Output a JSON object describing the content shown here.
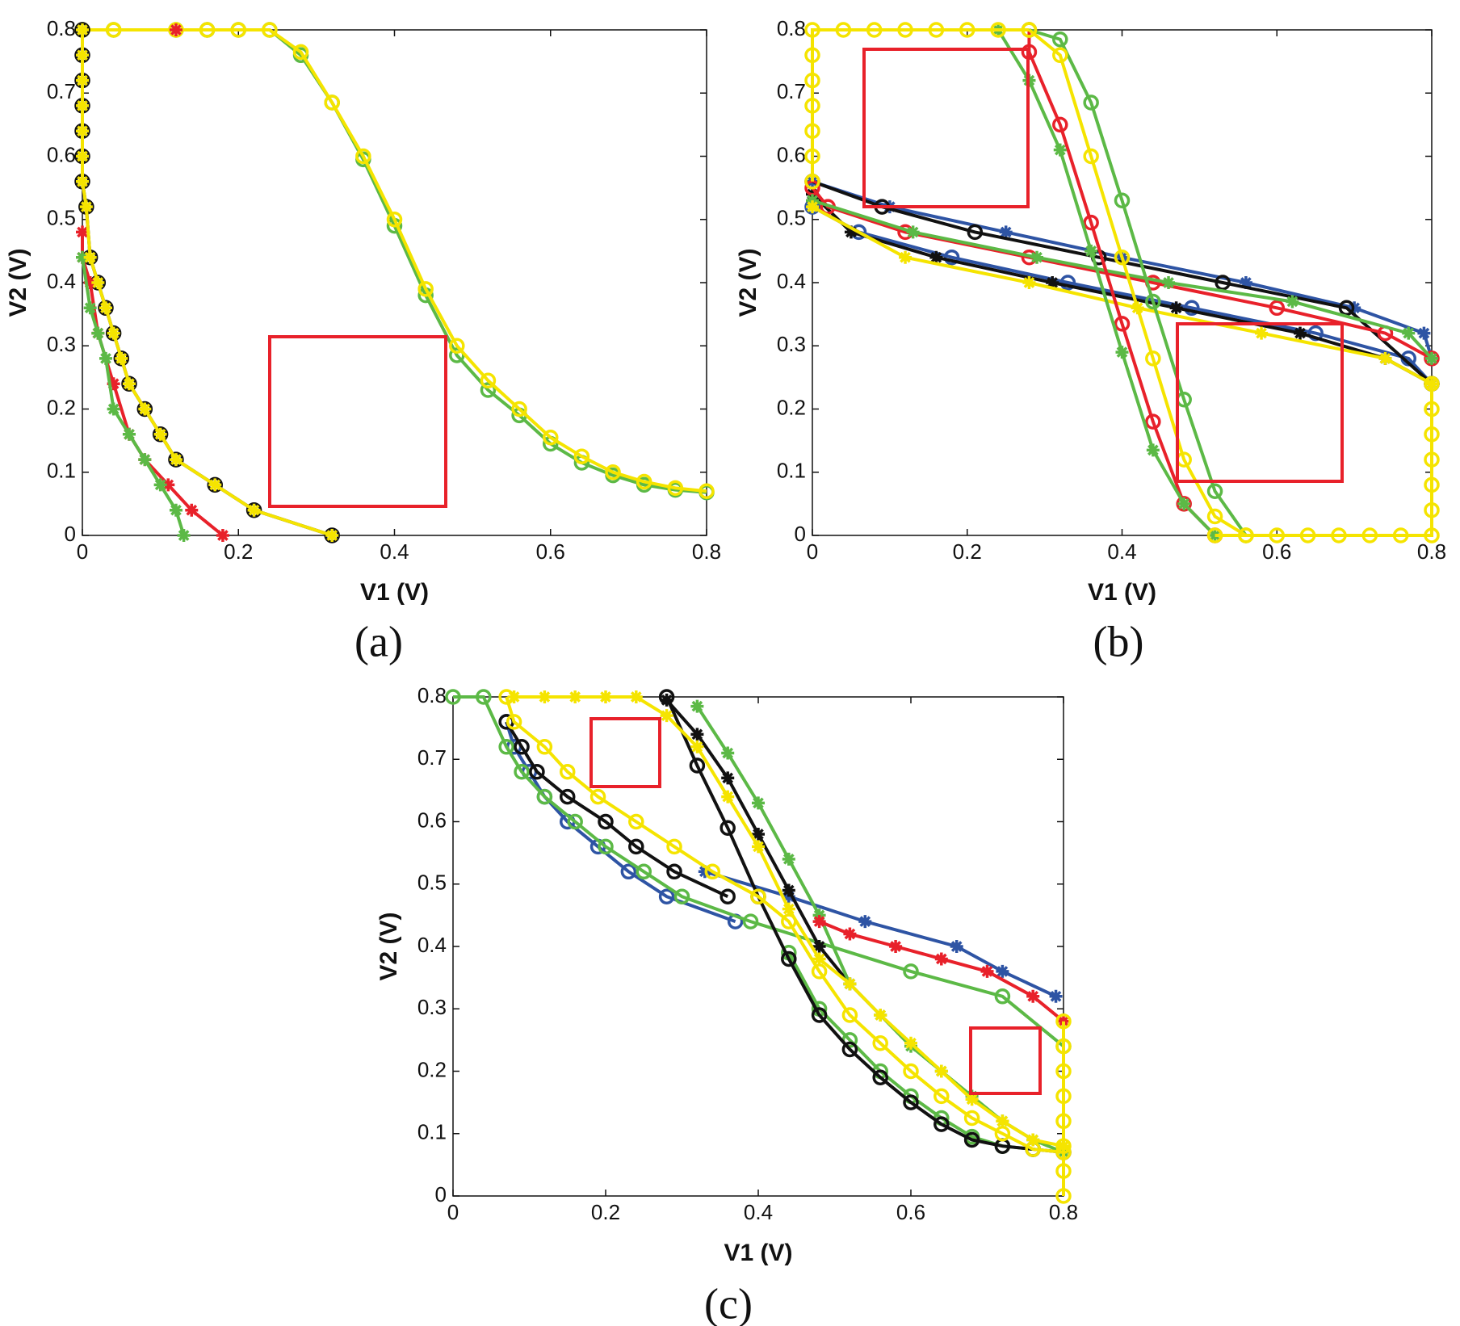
{
  "chart_data": [
    {
      "type": "line",
      "caption": "(a)",
      "xlabel": "V1 (V)",
      "ylabel": "V2 (V)",
      "xlim": [
        0,
        0.8
      ],
      "ylim": [
        0,
        0.8
      ],
      "xticks": [
        0,
        0.2,
        0.4,
        0.6,
        0.8
      ],
      "yticks": [
        0,
        0.1,
        0.2,
        0.3,
        0.4,
        0.5,
        0.6,
        0.7,
        0.8
      ],
      "series": [
        {
          "color": "#5cb946",
          "marker": "o",
          "x": [
            0,
            0.04,
            0.12,
            0.16,
            0.2,
            0.24,
            0.28,
            0.32,
            0.36,
            0.4,
            0.44,
            0.48,
            0.52,
            0.56,
            0.6,
            0.64,
            0.68,
            0.72,
            0.76,
            0.8
          ],
          "values": [
            0.8,
            0.8,
            0.8,
            0.8,
            0.8,
            0.8,
            0.76,
            0.685,
            0.595,
            0.49,
            0.38,
            0.285,
            0.23,
            0.19,
            0.145,
            0.115,
            0.095,
            0.08,
            0.072,
            0.068
          ]
        },
        {
          "color": "#f5e400",
          "marker": "o",
          "x": [
            0,
            0.04,
            0.12,
            0.16,
            0.2,
            0.24,
            0.28,
            0.32,
            0.36,
            0.4,
            0.44,
            0.48,
            0.52,
            0.56,
            0.6,
            0.64,
            0.68,
            0.72,
            0.76,
            0.8
          ],
          "values": [
            0.8,
            0.8,
            0.8,
            0.8,
            0.8,
            0.8,
            0.765,
            0.685,
            0.6,
            0.5,
            0.39,
            0.3,
            0.245,
            0.2,
            0.155,
            0.125,
            0.1,
            0.085,
            0.075,
            0.07
          ]
        },
        {
          "color": "#e8212a",
          "marker": "*",
          "x": [
            0.12
          ],
          "values": [
            0.8
          ]
        },
        {
          "color": "#111111",
          "marker": "o",
          "x": [
            0,
            0,
            0,
            0,
            0,
            0,
            0,
            0.005,
            0.01,
            0.02,
            0.03,
            0.04,
            0.05,
            0.06,
            0.08,
            0.1,
            0.12,
            0.17,
            0.22,
            0.32
          ],
          "values": [
            0.8,
            0.76,
            0.72,
            0.68,
            0.64,
            0.6,
            0.56,
            0.52,
            0.44,
            0.4,
            0.36,
            0.32,
            0.28,
            0.24,
            0.2,
            0.16,
            0.12,
            0.08,
            0.04,
            0
          ]
        },
        {
          "color": "#e8212a",
          "marker": "*",
          "x": [
            0,
            0,
            0.01,
            0.02,
            0.04,
            0.06,
            0.08,
            0.11,
            0.14,
            0.18
          ],
          "values": [
            0.48,
            0.44,
            0.4,
            0.32,
            0.24,
            0.16,
            0.12,
            0.08,
            0.04,
            0
          ]
        },
        {
          "color": "#5cb946",
          "marker": "*",
          "x": [
            0,
            0.01,
            0.02,
            0.03,
            0.04,
            0.06,
            0.08,
            0.1,
            0.12,
            0.13
          ],
          "values": [
            0.44,
            0.36,
            0.32,
            0.28,
            0.2,
            0.16,
            0.12,
            0.08,
            0.04,
            0
          ]
        },
        {
          "color": "#f5e400",
          "marker": "*",
          "x": [
            0,
            0,
            0,
            0,
            0,
            0,
            0,
            0.005,
            0.01,
            0.02,
            0.03,
            0.04,
            0.05,
            0.06,
            0.08,
            0.1,
            0.12,
            0.17,
            0.22,
            0.32
          ],
          "values": [
            0.8,
            0.76,
            0.72,
            0.68,
            0.64,
            0.6,
            0.56,
            0.52,
            0.44,
            0.4,
            0.36,
            0.32,
            0.28,
            0.24,
            0.2,
            0.16,
            0.12,
            0.08,
            0.04,
            0
          ]
        }
      ]
    },
    {
      "type": "line",
      "caption": "(b)",
      "xlabel": "V1 (V)",
      "ylabel": "V2 (V)",
      "xlim": [
        0,
        0.8
      ],
      "ylim": [
        0,
        0.8
      ],
      "xticks": [
        0,
        0.2,
        0.4,
        0.6,
        0.8
      ],
      "yticks": [
        0,
        0.1,
        0.2,
        0.3,
        0.4,
        0.5,
        0.6,
        0.7,
        0.8
      ],
      "series": [
        {
          "color": "#2e54a4",
          "marker": "o",
          "x": [
            0,
            0.06,
            0.18,
            0.33,
            0.49,
            0.65,
            0.77,
            0.8
          ],
          "values": [
            0.52,
            0.48,
            0.44,
            0.4,
            0.36,
            0.32,
            0.28,
            0.24
          ]
        },
        {
          "color": "#2e54a4",
          "marker": "*",
          "x": [
            0,
            0.1,
            0.25,
            0.4,
            0.56,
            0.7,
            0.79,
            0.8
          ],
          "values": [
            0.56,
            0.52,
            0.48,
            0.44,
            0.4,
            0.36,
            0.32,
            0.28
          ]
        },
        {
          "color": "#111111",
          "marker": "o",
          "x": [
            0,
            0.09,
            0.21,
            0.37,
            0.53,
            0.69,
            0.8
          ],
          "values": [
            0.56,
            0.52,
            0.48,
            0.44,
            0.4,
            0.36,
            0.24
          ]
        },
        {
          "color": "#111111",
          "marker": "*",
          "x": [
            0,
            0.05,
            0.16,
            0.31,
            0.47,
            0.63,
            0.74,
            0.8
          ],
          "values": [
            0.54,
            0.48,
            0.44,
            0.4,
            0.36,
            0.32,
            0.28,
            0.24
          ]
        },
        {
          "color": "#e8212a",
          "marker": "o",
          "x": [
            0,
            0.02,
            0.12,
            0.28,
            0.44,
            0.6,
            0.74,
            0.8
          ],
          "values": [
            0.55,
            0.52,
            0.48,
            0.44,
            0.4,
            0.36,
            0.32,
            0.28
          ]
        },
        {
          "color": "#5cb946",
          "marker": "*",
          "x": [
            0,
            0.13,
            0.29,
            0.46,
            0.62,
            0.77,
            0.8
          ],
          "values": [
            0.53,
            0.48,
            0.44,
            0.4,
            0.37,
            0.32,
            0.28
          ]
        },
        {
          "color": "#f5e400",
          "marker": "*",
          "x": [
            0,
            0.12,
            0.28,
            0.42,
            0.58,
            0.74,
            0.8
          ],
          "values": [
            0.52,
            0.44,
            0.4,
            0.36,
            0.32,
            0.28,
            0.24
          ]
        },
        {
          "color": "#e8212a",
          "marker": "o",
          "x": [
            0.28,
            0.28,
            0.32,
            0.36,
            0.4,
            0.44,
            0.48,
            0.52
          ],
          "values": [
            0.8,
            0.765,
            0.65,
            0.495,
            0.335,
            0.18,
            0.05,
            0
          ]
        },
        {
          "color": "#5cb946",
          "marker": "o",
          "x": [
            0.28,
            0.32,
            0.36,
            0.4,
            0.44,
            0.48,
            0.52,
            0.56
          ],
          "values": [
            0.8,
            0.785,
            0.685,
            0.53,
            0.37,
            0.215,
            0.07,
            0
          ]
        },
        {
          "color": "#5cb946",
          "marker": "*",
          "x": [
            0.24,
            0.28,
            0.32,
            0.36,
            0.4,
            0.44,
            0.48,
            0.52
          ],
          "values": [
            0.8,
            0.72,
            0.61,
            0.45,
            0.29,
            0.135,
            0.05,
            0
          ]
        },
        {
          "color": "#f5e400",
          "marker": "o",
          "x": [
            0.28,
            0.32,
            0.36,
            0.4,
            0.44,
            0.48,
            0.52,
            0.56
          ],
          "values": [
            0.8,
            0.76,
            0.6,
            0.44,
            0.28,
            0.12,
            0.03,
            0
          ]
        },
        {
          "color": "#f5e400",
          "marker": "o",
          "x": [
            0,
            0,
            0,
            0,
            0,
            0,
            0,
            0.04,
            0.08,
            0.12,
            0.16,
            0.2,
            0.24,
            0.28
          ],
          "values": [
            0.56,
            0.6,
            0.64,
            0.68,
            0.72,
            0.76,
            0.8,
            0.8,
            0.8,
            0.8,
            0.8,
            0.8,
            0.8,
            0.8
          ]
        },
        {
          "color": "#f5e400",
          "marker": "o",
          "x": [
            0.52,
            0.56,
            0.6,
            0.64,
            0.68,
            0.72,
            0.76,
            0.8,
            0.8,
            0.8,
            0.8,
            0.8,
            0.8,
            0.8
          ],
          "values": [
            0,
            0,
            0,
            0,
            0,
            0,
            0,
            0,
            0.04,
            0.08,
            0.12,
            0.16,
            0.2,
            0.24
          ]
        }
      ]
    },
    {
      "type": "line",
      "caption": "(c)",
      "xlabel": "V1 (V)",
      "ylabel": "V2 (V)",
      "xlim": [
        0,
        0.8
      ],
      "ylim": [
        0,
        0.8
      ],
      "xticks": [
        0,
        0.2,
        0.4,
        0.6,
        0.8
      ],
      "yticks": [
        0,
        0.1,
        0.2,
        0.3,
        0.4,
        0.5,
        0.6,
        0.7,
        0.8
      ],
      "series": [
        {
          "color": "#2e54a4",
          "marker": "o",
          "x": [
            0.07,
            0.08,
            0.1,
            0.12,
            0.15,
            0.19,
            0.23,
            0.28,
            0.37
          ],
          "values": [
            0.76,
            0.72,
            0.68,
            0.64,
            0.6,
            0.56,
            0.52,
            0.48,
            0.44
          ]
        },
        {
          "color": "#2e54a4",
          "marker": "*",
          "x": [
            0.33,
            0.44,
            0.54,
            0.66,
            0.72,
            0.79
          ],
          "values": [
            0.52,
            0.48,
            0.44,
            0.4,
            0.36,
            0.32
          ]
        },
        {
          "color": "#5cb946",
          "marker": "o",
          "x": [
            0,
            0.04,
            0.07,
            0.09,
            0.12,
            0.16,
            0.2,
            0.25,
            0.3,
            0.39,
            0.6,
            0.72,
            0.8
          ],
          "values": [
            0.8,
            0.8,
            0.72,
            0.68,
            0.64,
            0.6,
            0.56,
            0.52,
            0.48,
            0.44,
            0.36,
            0.32,
            0.24
          ]
        },
        {
          "color": "#111111",
          "marker": "o",
          "x": [
            0.07,
            0.09,
            0.11,
            0.15,
            0.2,
            0.24,
            0.29,
            0.36
          ],
          "values": [
            0.76,
            0.72,
            0.68,
            0.64,
            0.6,
            0.56,
            0.52,
            0.48
          ]
        },
        {
          "color": "#5cb946",
          "marker": "o",
          "x": [
            0.44,
            0.48,
            0.52,
            0.56,
            0.6,
            0.64,
            0.68,
            0.72,
            0.76
          ],
          "values": [
            0.39,
            0.3,
            0.25,
            0.2,
            0.16,
            0.125,
            0.095,
            0.08,
            0.075
          ]
        },
        {
          "color": "#111111",
          "marker": "o",
          "x": [
            0.28,
            0.32,
            0.36,
            0.4,
            0.44,
            0.48,
            0.52,
            0.56,
            0.6,
            0.64,
            0.68,
            0.72,
            0.76,
            0.8
          ],
          "values": [
            0.8,
            0.69,
            0.59,
            0.48,
            0.38,
            0.29,
            0.235,
            0.19,
            0.15,
            0.115,
            0.09,
            0.08,
            0.075,
            0.07
          ]
        },
        {
          "color": "#111111",
          "marker": "*",
          "x": [
            0.28,
            0.32,
            0.36,
            0.4,
            0.44,
            0.48,
            0.52
          ],
          "values": [
            0.795,
            0.74,
            0.67,
            0.58,
            0.49,
            0.4,
            0.34
          ]
        },
        {
          "color": "#5cb946",
          "marker": "*",
          "x": [
            0.32,
            0.36,
            0.4,
            0.44,
            0.48,
            0.52,
            0.56,
            0.6,
            0.64,
            0.68,
            0.72,
            0.76,
            0.8
          ],
          "values": [
            0.785,
            0.71,
            0.63,
            0.54,
            0.45,
            0.34,
            0.29,
            0.24,
            0.2,
            0.16,
            0.12,
            0.09,
            0.07
          ]
        },
        {
          "color": "#e8212a",
          "marker": "*",
          "x": [
            0.48,
            0.52,
            0.58,
            0.64,
            0.7,
            0.76,
            0.8
          ],
          "values": [
            0.44,
            0.42,
            0.4,
            0.38,
            0.36,
            0.32,
            0.28
          ]
        },
        {
          "color": "#f5e400",
          "marker": "o",
          "x": [
            0.07,
            0.08,
            0.12,
            0.15,
            0.19,
            0.24,
            0.29,
            0.34,
            0.4,
            0.44,
            0.48,
            0.52,
            0.56,
            0.6,
            0.64,
            0.68,
            0.72,
            0.76,
            0.8
          ],
          "values": [
            0.8,
            0.76,
            0.72,
            0.68,
            0.64,
            0.6,
            0.56,
            0.52,
            0.48,
            0.44,
            0.36,
            0.29,
            0.245,
            0.2,
            0.16,
            0.125,
            0.1,
            0.075,
            0.07
          ]
        },
        {
          "color": "#f5e400",
          "marker": "*",
          "x": [
            0.08,
            0.12,
            0.16,
            0.2,
            0.24,
            0.28,
            0.32,
            0.36,
            0.4,
            0.44,
            0.48,
            0.52,
            0.56,
            0.6,
            0.64,
            0.68,
            0.72,
            0.76,
            0.8
          ],
          "values": [
            0.8,
            0.8,
            0.8,
            0.8,
            0.8,
            0.77,
            0.72,
            0.64,
            0.56,
            0.46,
            0.38,
            0.34,
            0.29,
            0.245,
            0.2,
            0.155,
            0.12,
            0.09,
            0.08
          ]
        },
        {
          "color": "#f5e400",
          "marker": "o",
          "x": [
            0.8,
            0.8,
            0.8,
            0.8,
            0.8,
            0.8,
            0.8,
            0.8
          ],
          "values": [
            0.28,
            0.24,
            0.2,
            0.16,
            0.12,
            0.08,
            0.04,
            0
          ]
        }
      ]
    }
  ]
}
